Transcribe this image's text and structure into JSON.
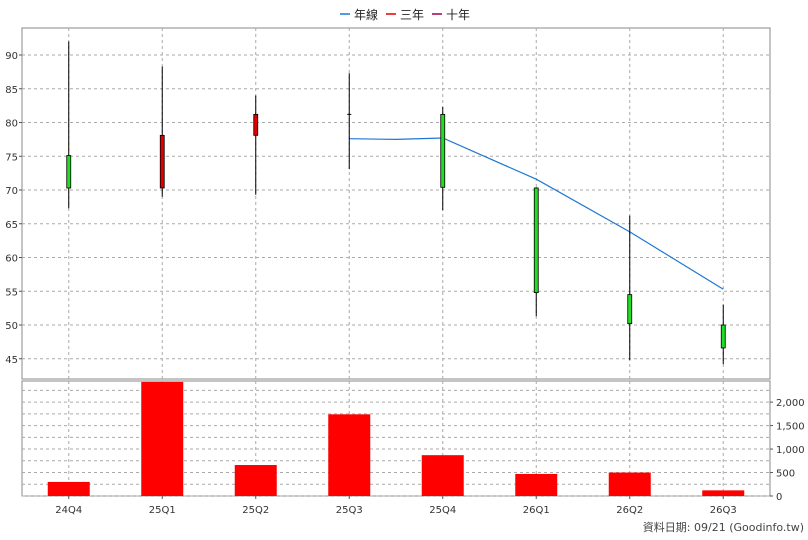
{
  "chart_data": {
    "type": "candlestick",
    "legend": [
      {
        "label": "年線",
        "color": "#1f77d4"
      },
      {
        "label": "三年",
        "color": "#e00000"
      },
      {
        "label": "十年",
        "color": "#a0004a"
      }
    ],
    "categories": [
      "24Q4",
      "25Q1",
      "25Q2",
      "25Q3",
      "25Q4",
      "26Q1",
      "26Q2",
      "26Q3"
    ],
    "price_axis": {
      "ylim": [
        42,
        94
      ],
      "ticks": [
        45,
        50,
        55,
        60,
        65,
        70,
        75,
        80,
        85,
        90
      ]
    },
    "candles": [
      {
        "open": 70.3,
        "close": 75.1,
        "high": 92.0,
        "low": 67.3,
        "color": "#22dd22"
      },
      {
        "open": 70.3,
        "close": 78.1,
        "high": 88.3,
        "low": 69.0,
        "color": "#e00000"
      },
      {
        "open": 78.1,
        "close": 81.2,
        "high": 84.0,
        "low": 69.3,
        "color": "#e00000"
      },
      {
        "open": 81.2,
        "close": 81.2,
        "high": 87.3,
        "low": 73.1,
        "color": "#000000"
      },
      {
        "open": 81.2,
        "close": 70.4,
        "high": 82.3,
        "low": 67.0,
        "color": "#22dd22"
      },
      {
        "open": 70.3,
        "close": 54.8,
        "high": 70.4,
        "low": 51.3,
        "color": "#22dd22"
      },
      {
        "open": 54.5,
        "close": 50.2,
        "high": 66.2,
        "low": 44.8,
        "color": "#22dd22"
      },
      {
        "open": 50.0,
        "close": 46.6,
        "high": 53.0,
        "low": 44.2,
        "color": "#22dd22"
      }
    ],
    "year_line": {
      "name": "年線",
      "points": [
        {
          "x": 3.0,
          "y": 77.6
        },
        {
          "x": 3.5,
          "y": 77.5
        },
        {
          "x": 4.0,
          "y": 77.7
        },
        {
          "x": 5.0,
          "y": 71.6
        },
        {
          "x": 6.0,
          "y": 63.8
        },
        {
          "x": 7.0,
          "y": 55.3
        }
      ]
    },
    "volume": {
      "values": [
        300,
        2430,
        660,
        1740,
        870,
        470,
        500,
        120
      ],
      "color": "#ff0000",
      "ylim": [
        0,
        2450
      ],
      "ticks": [
        0,
        500,
        1000,
        1500,
        2000
      ],
      "tick_labels": [
        "0",
        "500",
        "1,000",
        "1,500",
        "2,000"
      ]
    }
  },
  "footer": {
    "text": "資料日期: 09/21  (Goodinfo.tw)"
  }
}
